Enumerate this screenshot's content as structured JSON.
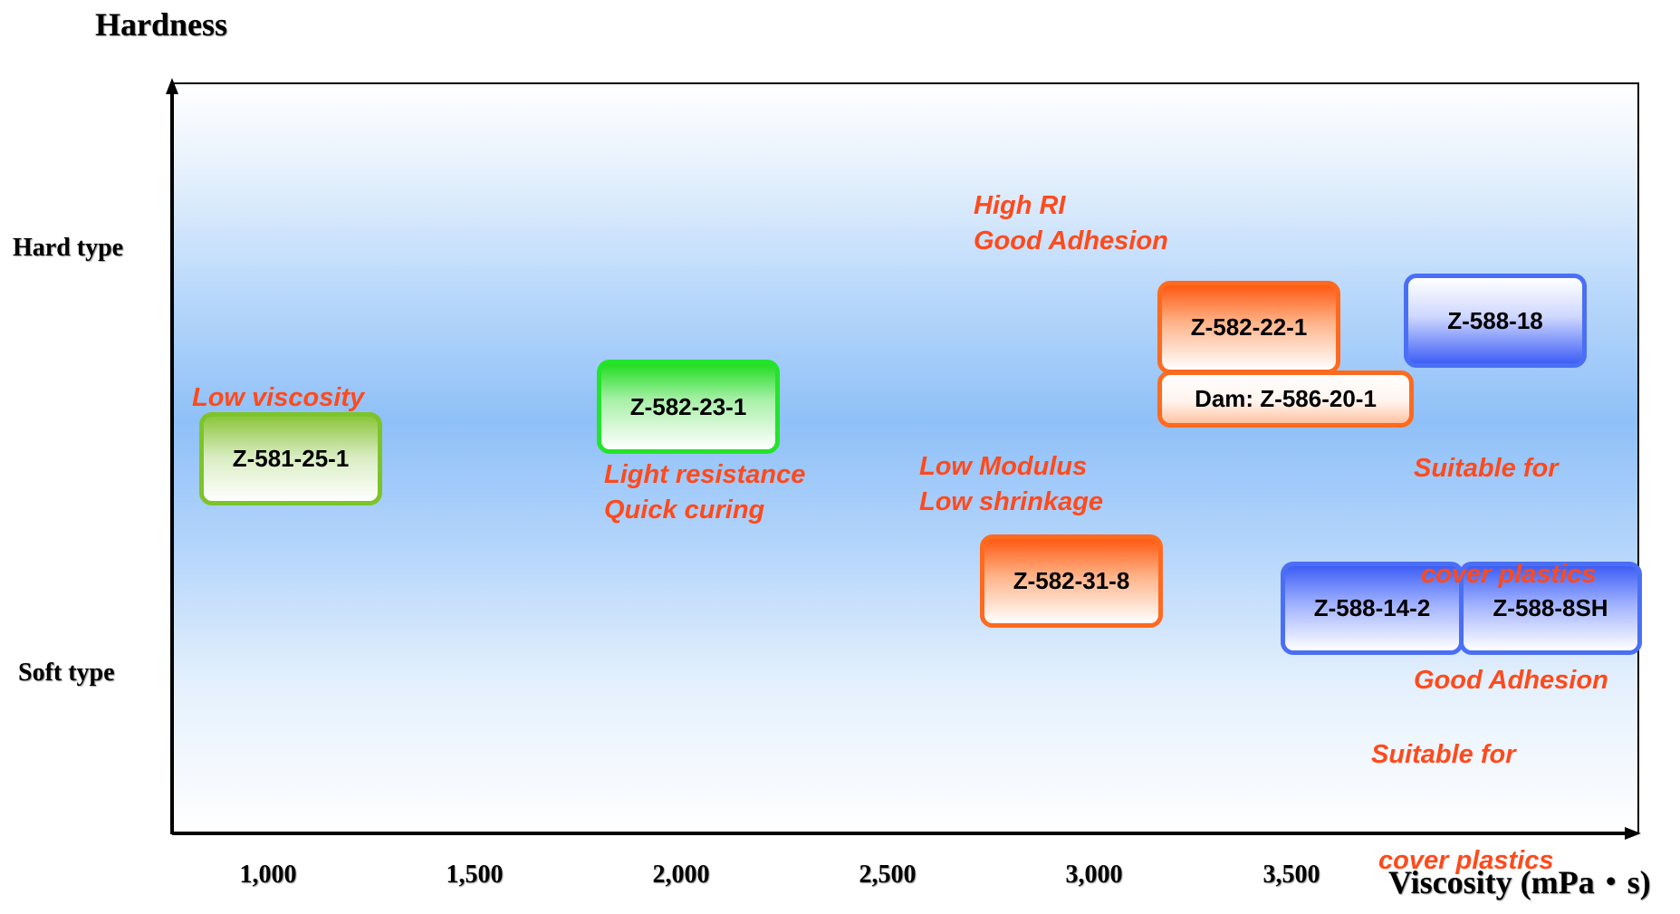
{
  "chart_data": {
    "type": "scatter",
    "title": "",
    "ylabel": "Hardness",
    "xlabel": "Viscosity (mPa・s)",
    "x_ticks": [
      1000,
      1500,
      2000,
      2500,
      3000,
      3500
    ],
    "x_tick_labels": [
      "1,000",
      "1,500",
      "2,000",
      "2,500",
      "3,000",
      "3,500"
    ],
    "y_category_labels": [
      "Hard type",
      "Soft type"
    ],
    "products": [
      {
        "name": "Z-581-25-1",
        "color": "#8cc63e"
      },
      {
        "name": "Z-582-23-1",
        "color": "#22dd22"
      },
      {
        "name": "Z-582-22-1",
        "color": "#ff5a12"
      },
      {
        "name": "Dam: Z-586-20-1",
        "color": "#ff5a12"
      },
      {
        "name": "Z-582-31-8",
        "color": "#ff5a12"
      },
      {
        "name": "Z-588-18",
        "color": "#3e5ef5"
      },
      {
        "name": "Z-588-14-2",
        "color": "#3e5ef5"
      },
      {
        "name": "Z-588-8SH",
        "color": "#3e5ef5"
      }
    ],
    "annotations": [
      {
        "lines": [
          "Low viscosity"
        ]
      },
      {
        "lines": [
          "Light resistance",
          "Quick curing"
        ]
      },
      {
        "lines": [
          "High RI",
          "Good Adhesion"
        ]
      },
      {
        "lines": [
          "Low Modulus",
          "Low shrinkage"
        ]
      },
      {
        "lines": [
          "Suitable for",
          " cover plastics",
          "Good Adhesion"
        ]
      },
      {
        "lines": [
          "Suitable for",
          " cover plastics"
        ]
      }
    ],
    "annotation_color": "#ff4a1c"
  }
}
